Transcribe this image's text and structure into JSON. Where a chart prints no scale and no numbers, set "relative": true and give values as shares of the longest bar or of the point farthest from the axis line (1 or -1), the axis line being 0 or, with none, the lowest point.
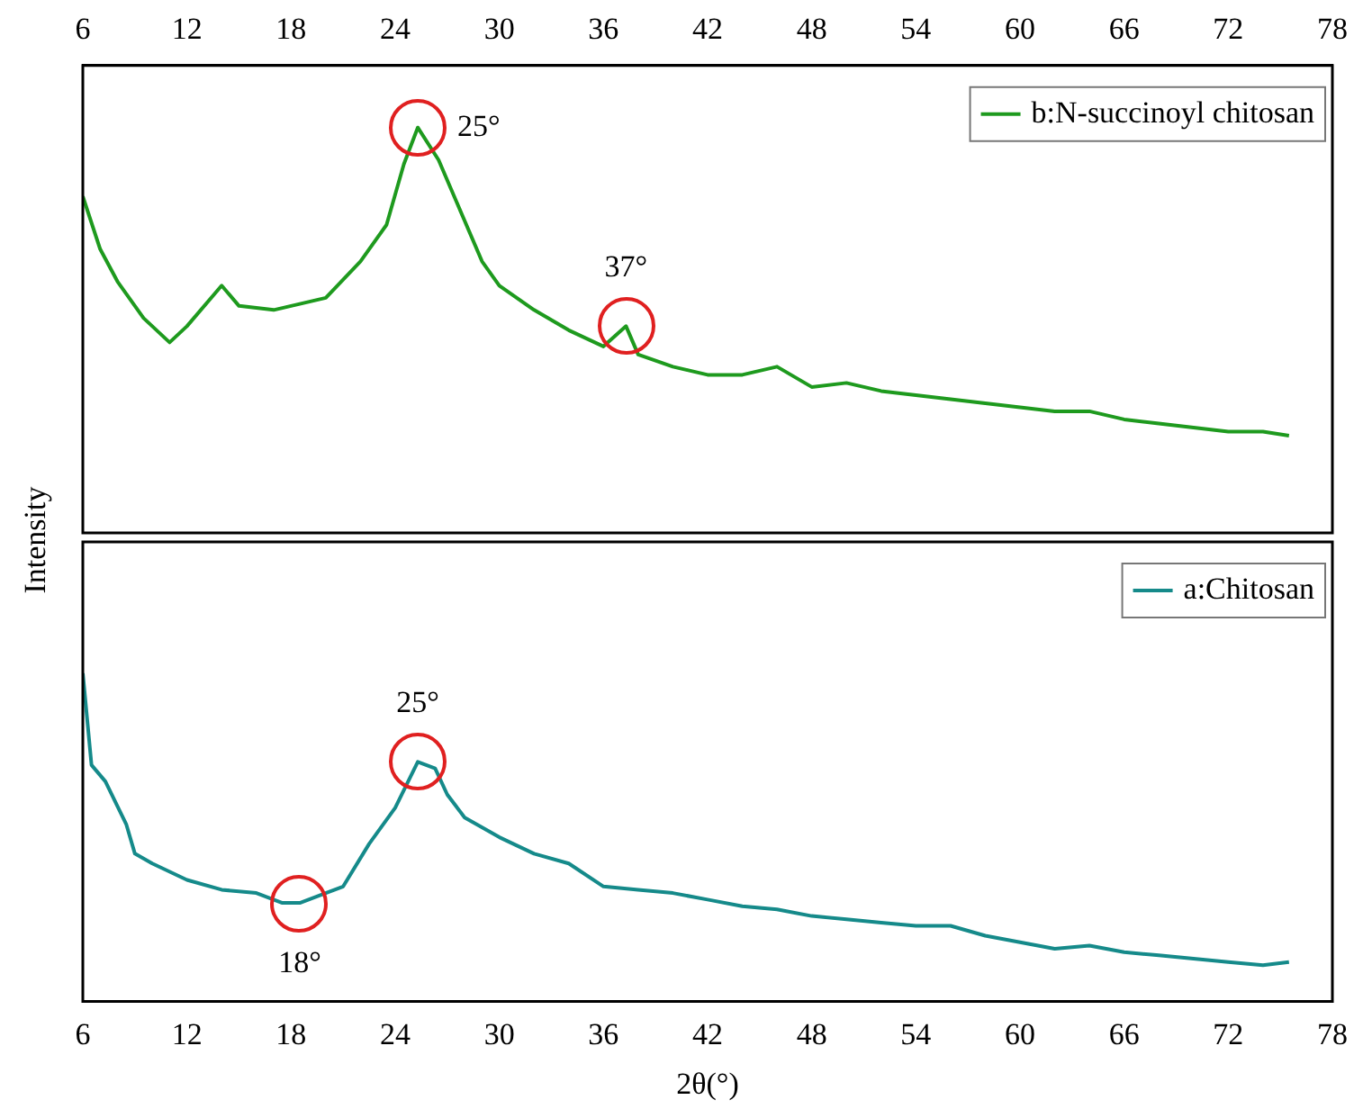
{
  "chart_data": [
    {
      "type": "line",
      "ylabel": "Intensity",
      "relative": true,
      "xlim": [
        6,
        78
      ],
      "xticks": [
        6,
        12,
        18,
        24,
        30,
        36,
        42,
        48,
        54,
        60,
        66,
        72,
        78
      ],
      "tick_labels": "x",
      "legend": "top right",
      "marker": "none",
      "x": [
        6,
        7,
        8,
        9.5,
        11,
        12,
        14,
        15,
        17,
        19,
        20,
        22,
        23.5,
        24.5,
        25.3,
        26.5,
        28,
        29,
        30,
        32,
        34,
        36,
        37.3,
        38,
        40,
        42,
        44,
        46,
        48,
        50,
        52,
        54,
        56,
        58,
        60,
        62,
        64,
        66,
        68,
        70,
        72,
        74,
        75.5
      ],
      "series": [
        {
          "name": "b:N-succinoyl chitosan",
          "color": "#1e9a1e",
          "values": [
            0.83,
            0.7,
            0.62,
            0.53,
            0.47,
            0.51,
            0.61,
            0.56,
            0.55,
            0.57,
            0.58,
            0.67,
            0.76,
            0.91,
            1,
            0.92,
            0.77,
            0.67,
            0.61,
            0.55,
            0.5,
            0.46,
            0.51,
            0.44,
            0.41,
            0.39,
            0.39,
            0.41,
            0.36,
            0.37,
            0.35,
            0.34,
            0.33,
            0.32,
            0.31,
            0.3,
            0.3,
            0.28,
            0.27,
            0.26,
            0.25,
            0.25,
            0.24
          ]
        }
      ],
      "annotations": [
        {
          "text": "25°",
          "x": 25.3,
          "y": 1
        },
        {
          "text": "37°",
          "x": 37.3,
          "y": 0.51
        }
      ]
    },
    {
      "type": "line",
      "xlabel": "2θ(°)",
      "relative": true,
      "xlim": [
        6,
        78
      ],
      "xticks": [
        6,
        12,
        18,
        24,
        30,
        36,
        42,
        48,
        54,
        60,
        66,
        72,
        78
      ],
      "tick_labels": "x",
      "legend": "top right",
      "marker": "none",
      "x": [
        6,
        6.5,
        7.3,
        8.5,
        9,
        10,
        12,
        14,
        16,
        17.5,
        18.5,
        20,
        21,
        22.5,
        24,
        25.3,
        26.3,
        27,
        28,
        30,
        32,
        34,
        36,
        38,
        40,
        42,
        44,
        46,
        48,
        50,
        52,
        54,
        56,
        58,
        60,
        62,
        64,
        66,
        68,
        70,
        72,
        74,
        75.5
      ],
      "series": [
        {
          "name": "a:Chitosan",
          "color": "#158a8a",
          "values": [
            1,
            0.72,
            0.67,
            0.54,
            0.45,
            0.42,
            0.37,
            0.34,
            0.33,
            0.3,
            0.3,
            0.33,
            0.35,
            0.48,
            0.59,
            0.73,
            0.71,
            0.63,
            0.56,
            0.5,
            0.45,
            0.42,
            0.35,
            0.34,
            0.33,
            0.31,
            0.29,
            0.28,
            0.26,
            0.25,
            0.24,
            0.23,
            0.23,
            0.2,
            0.18,
            0.16,
            0.17,
            0.15,
            0.14,
            0.13,
            0.12,
            0.11,
            0.12
          ]
        }
      ],
      "annotations": [
        {
          "text": "25°",
          "x": 25.3,
          "y": 0.73
        },
        {
          "text": "18°",
          "x": 18.5,
          "y": 0.3
        }
      ]
    }
  ]
}
